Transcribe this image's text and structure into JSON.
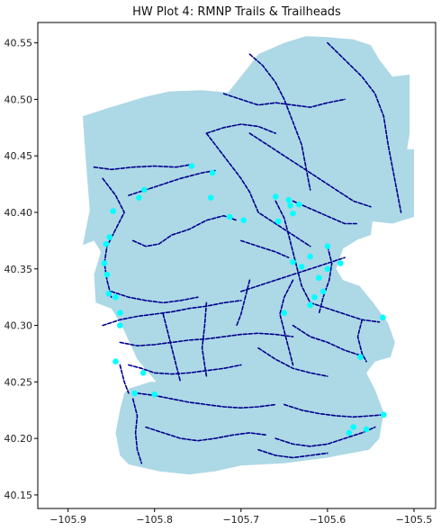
{
  "chart_data": {
    "type": "scatter",
    "title": "HW Plot 4: RMNP Trails & Trailheads",
    "xlabel": "",
    "ylabel": "",
    "xlim": [
      -105.935,
      -105.475
    ],
    "ylim": [
      40.138,
      40.568
    ],
    "x_ticks": [
      -105.9,
      -105.8,
      -105.7,
      -105.6,
      -105.5
    ],
    "x_tick_labels": [
      "−105.9",
      "−105.8",
      "−105.7",
      "−105.6",
      "−105.5"
    ],
    "y_ticks": [
      40.15,
      40.2,
      40.25,
      40.3,
      40.35,
      40.4,
      40.45,
      40.5,
      40.55
    ],
    "y_tick_labels": [
      "40.15",
      "40.20",
      "40.25",
      "40.30",
      "40.35",
      "40.40",
      "40.45",
      "40.50",
      "40.55"
    ],
    "grid": false,
    "legend": "none",
    "colors": {
      "park_fill": "#add8e6",
      "trail_line": "#00008b",
      "trailhead_marker": "#00ffff",
      "axes": "#000000",
      "background": "#ffffff"
    },
    "park_boundary": [
      [
        -105.883,
        40.371
      ],
      [
        -105.875,
        40.402
      ],
      [
        -105.88,
        40.452
      ],
      [
        -105.883,
        40.485
      ],
      [
        -105.855,
        40.492
      ],
      [
        -105.812,
        40.502
      ],
      [
        -105.783,
        40.507
      ],
      [
        -105.745,
        40.508
      ],
      [
        -105.715,
        40.506
      ],
      [
        -105.69,
        40.53
      ],
      [
        -105.68,
        40.54
      ],
      [
        -105.65,
        40.55
      ],
      [
        -105.625,
        40.556
      ],
      [
        -105.6,
        40.555
      ],
      [
        -105.57,
        40.553
      ],
      [
        -105.55,
        40.548
      ],
      [
        -105.54,
        40.535
      ],
      [
        -105.525,
        40.52
      ],
      [
        -105.505,
        40.522
      ],
      [
        -105.505,
        40.47
      ],
      [
        -105.508,
        40.456
      ],
      [
        -105.5,
        40.456
      ],
      [
        -105.5,
        40.396
      ],
      [
        -105.525,
        40.39
      ],
      [
        -105.548,
        40.392
      ],
      [
        -105.55,
        40.38
      ],
      [
        -105.565,
        40.376
      ],
      [
        -105.582,
        40.368
      ],
      [
        -105.59,
        40.35
      ],
      [
        -105.582,
        40.34
      ],
      [
        -105.563,
        40.335
      ],
      [
        -105.547,
        40.32
      ],
      [
        -105.53,
        40.302
      ],
      [
        -105.522,
        40.285
      ],
      [
        -105.527,
        40.272
      ],
      [
        -105.545,
        40.268
      ],
      [
        -105.555,
        40.258
      ],
      [
        -105.545,
        40.243
      ],
      [
        -105.535,
        40.223
      ],
      [
        -105.54,
        40.2
      ],
      [
        -105.552,
        40.19
      ],
      [
        -105.6,
        40.183
      ],
      [
        -105.65,
        40.178
      ],
      [
        -105.7,
        40.176
      ],
      [
        -105.73,
        40.171
      ],
      [
        -105.76,
        40.168
      ],
      [
        -105.795,
        40.171
      ],
      [
        -105.83,
        40.177
      ],
      [
        -105.84,
        40.185
      ],
      [
        -105.845,
        40.205
      ],
      [
        -105.84,
        40.225
      ],
      [
        -105.835,
        40.24
      ],
      [
        -105.83,
        40.244
      ],
      [
        -105.805,
        40.25
      ],
      [
        -105.798,
        40.25
      ],
      [
        -105.82,
        40.27
      ],
      [
        -105.838,
        40.3
      ],
      [
        -105.85,
        40.315
      ],
      [
        -105.868,
        40.32
      ],
      [
        -105.87,
        40.345
      ],
      [
        -105.862,
        40.365
      ],
      [
        -105.87,
        40.375
      ],
      [
        -105.883,
        40.371
      ]
    ],
    "trails": [
      [
        [
          -105.87,
          40.44
        ],
        [
          -105.85,
          40.438
        ],
        [
          -105.825,
          40.44
        ],
        [
          -105.8,
          40.441
        ],
        [
          -105.775,
          40.44
        ],
        [
          -105.76,
          40.442
        ]
      ],
      [
        [
          -105.86,
          40.43
        ],
        [
          -105.845,
          40.415
        ],
        [
          -105.835,
          40.4
        ],
        [
          -105.845,
          40.385
        ],
        [
          -105.855,
          40.37
        ],
        [
          -105.858,
          40.355
        ],
        [
          -105.855,
          40.34
        ],
        [
          -105.85,
          40.325
        ]
      ],
      [
        [
          -105.83,
          40.415
        ],
        [
          -105.81,
          40.42
        ],
        [
          -105.79,
          40.425
        ],
        [
          -105.77,
          40.43
        ],
        [
          -105.745,
          40.435
        ],
        [
          -105.73,
          40.437
        ]
      ],
      [
        [
          -105.825,
          40.375
        ],
        [
          -105.81,
          40.37
        ],
        [
          -105.795,
          40.372
        ],
        [
          -105.78,
          40.38
        ],
        [
          -105.76,
          40.385
        ],
        [
          -105.74,
          40.393
        ],
        [
          -105.72,
          40.397
        ],
        [
          -105.705,
          40.393
        ]
      ],
      [
        [
          -105.74,
          40.47
        ],
        [
          -105.725,
          40.455
        ],
        [
          -105.71,
          40.44
        ],
        [
          -105.7,
          40.43
        ],
        [
          -105.69,
          40.418
        ],
        [
          -105.68,
          40.4
        ],
        [
          -105.66,
          40.39
        ],
        [
          -105.64,
          40.38
        ],
        [
          -105.62,
          40.37
        ]
      ],
      [
        [
          -105.72,
          40.505
        ],
        [
          -105.7,
          40.5
        ],
        [
          -105.68,
          40.495
        ],
        [
          -105.66,
          40.497
        ],
        [
          -105.64,
          40.495
        ],
        [
          -105.62,
          40.493
        ],
        [
          -105.6,
          40.497
        ],
        [
          -105.58,
          40.5
        ]
      ],
      [
        [
          -105.69,
          40.54
        ],
        [
          -105.675,
          40.53
        ],
        [
          -105.66,
          40.515
        ],
        [
          -105.65,
          40.5
        ],
        [
          -105.64,
          40.48
        ],
        [
          -105.63,
          40.46
        ],
        [
          -105.625,
          40.44
        ],
        [
          -105.62,
          40.42
        ]
      ],
      [
        [
          -105.6,
          40.55
        ],
        [
          -105.58,
          40.535
        ],
        [
          -105.56,
          40.52
        ],
        [
          -105.545,
          40.505
        ],
        [
          -105.535,
          40.485
        ],
        [
          -105.53,
          40.46
        ],
        [
          -105.525,
          40.44
        ],
        [
          -105.52,
          40.42
        ],
        [
          -105.515,
          40.4
        ]
      ],
      [
        [
          -105.69,
          40.47
        ],
        [
          -105.67,
          40.46
        ],
        [
          -105.65,
          40.45
        ],
        [
          -105.63,
          40.44
        ],
        [
          -105.61,
          40.43
        ],
        [
          -105.59,
          40.42
        ],
        [
          -105.57,
          40.41
        ],
        [
          -105.55,
          40.405
        ]
      ],
      [
        [
          -105.74,
          40.47
        ],
        [
          -105.72,
          40.475
        ],
        [
          -105.7,
          40.478
        ],
        [
          -105.68,
          40.476
        ],
        [
          -105.66,
          40.47
        ]
      ],
      [
        [
          -105.66,
          40.41
        ],
        [
          -105.65,
          40.395
        ],
        [
          -105.645,
          40.38
        ],
        [
          -105.64,
          40.365
        ],
        [
          -105.635,
          40.35
        ],
        [
          -105.63,
          40.335
        ],
        [
          -105.62,
          40.32
        ]
      ],
      [
        [
          -105.7,
          40.33
        ],
        [
          -105.68,
          40.335
        ],
        [
          -105.66,
          40.34
        ],
        [
          -105.64,
          40.345
        ],
        [
          -105.62,
          40.35
        ],
        [
          -105.6,
          40.355
        ],
        [
          -105.58,
          40.36
        ]
      ],
      [
        [
          -105.86,
          40.3
        ],
        [
          -105.84,
          40.305
        ],
        [
          -105.82,
          40.308
        ],
        [
          -105.8,
          40.31
        ],
        [
          -105.78,
          40.312
        ],
        [
          -105.76,
          40.315
        ],
        [
          -105.74,
          40.317
        ],
        [
          -105.72,
          40.32
        ],
        [
          -105.7,
          40.322
        ]
      ],
      [
        [
          -105.85,
          40.33
        ],
        [
          -105.83,
          40.325
        ],
        [
          -105.81,
          40.322
        ],
        [
          -105.79,
          40.32
        ],
        [
          -105.77,
          40.322
        ],
        [
          -105.75,
          40.325
        ]
      ],
      [
        [
          -105.84,
          40.285
        ],
        [
          -105.82,
          40.282
        ],
        [
          -105.8,
          40.283
        ],
        [
          -105.78,
          40.285
        ],
        [
          -105.76,
          40.287
        ],
        [
          -105.74,
          40.288
        ],
        [
          -105.72,
          40.29
        ],
        [
          -105.7,
          40.292
        ],
        [
          -105.68,
          40.293
        ],
        [
          -105.66,
          40.292
        ],
        [
          -105.64,
          40.29
        ]
      ],
      [
        [
          -105.83,
          40.265
        ],
        [
          -105.815,
          40.262
        ],
        [
          -105.8,
          40.258
        ],
        [
          -105.78,
          40.257
        ],
        [
          -105.76,
          40.258
        ],
        [
          -105.74,
          40.26
        ],
        [
          -105.72,
          40.262
        ],
        [
          -105.7,
          40.265
        ]
      ],
      [
        [
          -105.79,
          40.31
        ],
        [
          -105.785,
          40.295
        ],
        [
          -105.78,
          40.28
        ],
        [
          -105.775,
          40.265
        ],
        [
          -105.77,
          40.25
        ]
      ],
      [
        [
          -105.74,
          40.32
        ],
        [
          -105.742,
          40.3
        ],
        [
          -105.745,
          40.28
        ],
        [
          -105.742,
          40.265
        ],
        [
          -105.74,
          40.255
        ]
      ],
      [
        [
          -105.64,
          40.34
        ],
        [
          -105.65,
          40.325
        ],
        [
          -105.655,
          40.31
        ],
        [
          -105.65,
          40.295
        ],
        [
          -105.645,
          40.28
        ],
        [
          -105.64,
          40.265
        ]
      ],
      [
        [
          -105.62,
          40.32
        ],
        [
          -105.6,
          40.315
        ],
        [
          -105.58,
          40.31
        ],
        [
          -105.56,
          40.305
        ],
        [
          -105.54,
          40.303
        ]
      ],
      [
        [
          -105.64,
          40.3
        ],
        [
          -105.62,
          40.29
        ],
        [
          -105.6,
          40.285
        ],
        [
          -105.58,
          40.278
        ],
        [
          -105.56,
          40.273
        ]
      ],
      [
        [
          -105.68,
          40.28
        ],
        [
          -105.66,
          40.27
        ],
        [
          -105.64,
          40.262
        ],
        [
          -105.62,
          40.258
        ],
        [
          -105.6,
          40.255
        ]
      ],
      [
        [
          -105.82,
          40.24
        ],
        [
          -105.8,
          40.238
        ],
        [
          -105.78,
          40.235
        ],
        [
          -105.76,
          40.232
        ],
        [
          -105.74,
          40.23
        ],
        [
          -105.72,
          40.228
        ],
        [
          -105.7,
          40.227
        ],
        [
          -105.68,
          40.228
        ],
        [
          -105.66,
          40.23
        ]
      ],
      [
        [
          -105.825,
          40.235
        ],
        [
          -105.82,
          40.22
        ],
        [
          -105.822,
          40.205
        ],
        [
          -105.82,
          40.19
        ],
        [
          -105.815,
          40.178
        ]
      ],
      [
        [
          -105.81,
          40.21
        ],
        [
          -105.79,
          40.205
        ],
        [
          -105.77,
          40.2
        ],
        [
          -105.75,
          40.198
        ],
        [
          -105.73,
          40.2
        ],
        [
          -105.71,
          40.203
        ],
        [
          -105.69,
          40.205
        ],
        [
          -105.67,
          40.203
        ]
      ],
      [
        [
          -105.65,
          40.23
        ],
        [
          -105.63,
          40.225
        ],
        [
          -105.61,
          40.222
        ],
        [
          -105.59,
          40.22
        ],
        [
          -105.57,
          40.219
        ],
        [
          -105.55,
          40.22
        ],
        [
          -105.535,
          40.221
        ]
      ],
      [
        [
          -105.66,
          40.2
        ],
        [
          -105.64,
          40.195
        ],
        [
          -105.62,
          40.193
        ],
        [
          -105.6,
          40.195
        ],
        [
          -105.58,
          40.2
        ],
        [
          -105.56,
          40.205
        ],
        [
          -105.545,
          40.21
        ]
      ],
      [
        [
          -105.68,
          40.19
        ],
        [
          -105.66,
          40.185
        ],
        [
          -105.64,
          40.183
        ],
        [
          -105.62,
          40.185
        ],
        [
          -105.6,
          40.187
        ]
      ],
      [
        [
          -105.56,
          40.305
        ],
        [
          -105.565,
          40.29
        ],
        [
          -105.56,
          40.275
        ],
        [
          -105.555,
          40.268
        ]
      ],
      [
        [
          -105.6,
          40.37
        ],
        [
          -105.595,
          40.355
        ],
        [
          -105.598,
          40.34
        ],
        [
          -105.605,
          40.325
        ],
        [
          -105.61,
          40.31
        ]
      ],
      [
        [
          -105.64,
          40.41
        ],
        [
          -105.625,
          40.405
        ],
        [
          -105.61,
          40.4
        ],
        [
          -105.595,
          40.395
        ],
        [
          -105.58,
          40.39
        ],
        [
          -105.565,
          40.39
        ]
      ],
      [
        [
          -105.7,
          40.375
        ],
        [
          -105.68,
          40.37
        ],
        [
          -105.66,
          40.365
        ],
        [
          -105.645,
          40.36
        ]
      ],
      [
        [
          -105.84,
          40.265
        ],
        [
          -105.835,
          40.25
        ],
        [
          -105.83,
          40.24
        ]
      ],
      [
        [
          -105.69,
          40.34
        ],
        [
          -105.695,
          40.325
        ],
        [
          -105.7,
          40.31
        ],
        [
          -105.705,
          40.3
        ]
      ]
    ],
    "trailheads": [
      [
        -105.757,
        40.441
      ],
      [
        -105.733,
        40.435
      ],
      [
        -105.812,
        40.42
      ],
      [
        -105.818,
        40.413
      ],
      [
        -105.735,
        40.413
      ],
      [
        -105.848,
        40.401
      ],
      [
        -105.713,
        40.396
      ],
      [
        -105.697,
        40.393
      ],
      [
        -105.66,
        40.414
      ],
      [
        -105.645,
        40.411
      ],
      [
        -105.633,
        40.407
      ],
      [
        -105.64,
        40.399
      ],
      [
        -105.657,
        40.392
      ],
      [
        -105.643,
        40.406
      ],
      [
        -105.852,
        40.378
      ],
      [
        -105.856,
        40.372
      ],
      [
        -105.6,
        40.37
      ],
      [
        -105.62,
        40.361
      ],
      [
        -105.64,
        40.356
      ],
      [
        -105.63,
        40.352
      ],
      [
        -105.6,
        40.35
      ],
      [
        -105.585,
        40.355
      ],
      [
        -105.858,
        40.355
      ],
      [
        -105.855,
        40.345
      ],
      [
        -105.853,
        40.328
      ],
      [
        -105.845,
        40.325
      ],
      [
        -105.84,
        40.311
      ],
      [
        -105.84,
        40.3
      ],
      [
        -105.61,
        40.342
      ],
      [
        -105.605,
        40.33
      ],
      [
        -105.615,
        40.325
      ],
      [
        -105.62,
        40.318
      ],
      [
        -105.65,
        40.311
      ],
      [
        -105.536,
        40.307
      ],
      [
        -105.562,
        40.272
      ],
      [
        -105.845,
        40.268
      ],
      [
        -105.813,
        40.258
      ],
      [
        -105.823,
        40.24
      ],
      [
        -105.8,
        40.239
      ],
      [
        -105.535,
        40.221
      ],
      [
        -105.555,
        40.208
      ],
      [
        -105.57,
        40.21
      ],
      [
        -105.575,
        40.205
      ]
    ]
  }
}
